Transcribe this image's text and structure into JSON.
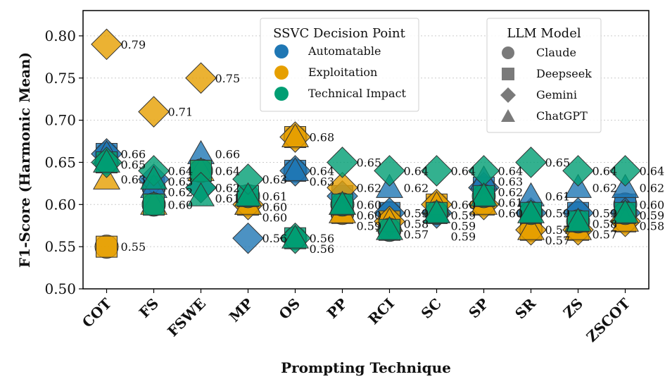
{
  "chart_data": {
    "type": "scatter",
    "title": "",
    "xlabel": "Prompting Technique",
    "ylabel": "F1-Score (Harmonic Mean)",
    "ylim": [
      0.5,
      0.83
    ],
    "yticks": [
      0.5,
      0.55,
      0.6,
      0.65,
      0.7,
      0.75,
      0.8
    ],
    "ytick_labels": [
      "0.50",
      "0.55",
      "0.60",
      "0.65",
      "0.70",
      "0.75",
      "0.80"
    ],
    "grid": "horizontal dotted",
    "categories": [
      "COT",
      "FS",
      "FSWE",
      "MP",
      "OS",
      "PP",
      "RCI",
      "SC",
      "SP",
      "SR",
      "ZS",
      "ZSCOT"
    ],
    "decision_points": [
      {
        "name": "Automatable",
        "color": "#1f77b4"
      },
      {
        "name": "Exploitation",
        "color": "#e69f00"
      },
      {
        "name": "Technical Impact",
        "color": "#009e73"
      }
    ],
    "models": [
      {
        "name": "Claude",
        "marker": "circle"
      },
      {
        "name": "Deepseek",
        "marker": "square"
      },
      {
        "name": "Gemini",
        "marker": "diamond"
      },
      {
        "name": "ChatGPT",
        "marker": "triangle"
      }
    ],
    "legend_color_title": "SSVC Decision Point",
    "legend_marker_title": "LLM Model",
    "series": [
      {
        "decision_point": "Automatable",
        "model": "Claude",
        "values": [
          0.66,
          0.62,
          0.64,
          0.6,
          0.64,
          0.6,
          0.59,
          0.59,
          0.62,
          0.59,
          0.59,
          0.6
        ]
      },
      {
        "decision_point": "Automatable",
        "model": "Deepseek",
        "values": [
          0.66,
          0.62,
          0.64,
          0.6,
          0.64,
          0.61,
          0.59,
          0.59,
          0.62,
          0.59,
          0.59,
          0.6
        ]
      },
      {
        "decision_point": "Automatable",
        "model": "Gemini",
        "values": [
          0.66,
          0.63,
          0.62,
          0.56,
          0.64,
          0.61,
          0.59,
          0.59,
          0.62,
          0.59,
          0.59,
          0.59
        ]
      },
      {
        "decision_point": "Automatable",
        "model": "ChatGPT",
        "values": [
          0.66,
          0.62,
          0.66,
          0.6,
          0.64,
          0.6,
          0.62,
          0.59,
          0.63,
          0.61,
          0.62,
          0.62
        ]
      },
      {
        "decision_point": "Exploitation",
        "model": "Claude",
        "values": [
          0.55,
          0.6,
          0.64,
          0.6,
          0.68,
          0.59,
          0.58,
          0.6,
          0.6,
          0.57,
          0.57,
          0.58
        ]
      },
      {
        "decision_point": "Exploitation",
        "model": "Deepseek",
        "values": [
          0.55,
          0.6,
          0.64,
          0.6,
          0.68,
          0.59,
          0.58,
          0.6,
          0.6,
          0.57,
          0.57,
          0.58
        ]
      },
      {
        "decision_point": "Exploitation",
        "model": "Gemini",
        "values": [
          0.79,
          0.71,
          0.75,
          0.6,
          0.68,
          0.62,
          0.58,
          0.6,
          0.6,
          0.57,
          0.57,
          0.58
        ]
      },
      {
        "decision_point": "Exploitation",
        "model": "ChatGPT",
        "values": [
          0.63,
          0.6,
          0.64,
          0.6,
          0.68,
          0.59,
          0.58,
          0.6,
          0.6,
          0.57,
          0.57,
          0.58
        ]
      },
      {
        "decision_point": "Technical Impact",
        "model": "Claude",
        "values": [
          0.65,
          0.6,
          0.64,
          0.61,
          0.56,
          0.6,
          0.57,
          0.59,
          0.61,
          0.59,
          0.58,
          0.59
        ]
      },
      {
        "decision_point": "Technical Impact",
        "model": "Deepseek",
        "values": [
          0.65,
          0.6,
          0.64,
          0.61,
          0.56,
          0.6,
          0.57,
          0.59,
          0.61,
          0.59,
          0.58,
          0.59
        ]
      },
      {
        "decision_point": "Technical Impact",
        "model": "Gemini",
        "values": [
          0.65,
          0.64,
          0.62,
          0.63,
          0.56,
          0.65,
          0.64,
          0.64,
          0.64,
          0.65,
          0.64,
          0.64
        ]
      },
      {
        "decision_point": "Technical Impact",
        "model": "ChatGPT",
        "values": [
          0.65,
          0.63,
          0.61,
          0.61,
          0.56,
          0.6,
          0.57,
          0.59,
          0.61,
          0.59,
          0.58,
          0.59
        ]
      }
    ],
    "annotations": [
      {
        "x": "COT",
        "y": 0.79,
        "text": "0.79"
      },
      {
        "x": "COT",
        "y": 0.66,
        "text": "0.66"
      },
      {
        "x": "COT",
        "y": 0.65,
        "text": "0.65"
      },
      {
        "x": "COT",
        "y": 0.63,
        "text": "0.63"
      },
      {
        "x": "COT",
        "y": 0.55,
        "text": "0.55"
      },
      {
        "x": "FS",
        "y": 0.71,
        "text": "0.71"
      },
      {
        "x": "FS",
        "y": 0.64,
        "text": "0.64"
      },
      {
        "x": "FS",
        "y": 0.63,
        "text": "0.63"
      },
      {
        "x": "FS",
        "y": 0.62,
        "text": "0.62"
      },
      {
        "x": "FS",
        "y": 0.6,
        "text": "0.60"
      },
      {
        "x": "FSWE",
        "y": 0.75,
        "text": "0.75"
      },
      {
        "x": "FSWE",
        "y": 0.66,
        "text": "0.66"
      },
      {
        "x": "FSWE",
        "y": 0.64,
        "text": "0.64"
      },
      {
        "x": "FSWE",
        "y": 0.62,
        "text": "0.62"
      },
      {
        "x": "FSWE",
        "y": 0.61,
        "text": "0.61"
      },
      {
        "x": "MP",
        "y": 0.63,
        "text": "0.63"
      },
      {
        "x": "MP",
        "y": 0.61,
        "text": "0.61"
      },
      {
        "x": "MP",
        "y": 0.6,
        "text": "0.60"
      },
      {
        "x": "MP",
        "y": 0.6,
        "text": "0.60"
      },
      {
        "x": "MP",
        "y": 0.56,
        "text": "0.56"
      },
      {
        "x": "OS",
        "y": 0.68,
        "text": "0.68"
      },
      {
        "x": "OS",
        "y": 0.64,
        "text": "0.64"
      },
      {
        "x": "OS",
        "y": 0.63,
        "text": "0.63"
      },
      {
        "x": "OS",
        "y": 0.56,
        "text": "0.56"
      },
      {
        "x": "OS",
        "y": 0.56,
        "text": "0.56"
      },
      {
        "x": "PP",
        "y": 0.65,
        "text": "0.65"
      },
      {
        "x": "PP",
        "y": 0.62,
        "text": "0.62"
      },
      {
        "x": "PP",
        "y": 0.6,
        "text": "0.60"
      },
      {
        "x": "PP",
        "y": 0.6,
        "text": "0.60"
      },
      {
        "x": "PP",
        "y": 0.59,
        "text": "0.59"
      },
      {
        "x": "RCI",
        "y": 0.64,
        "text": "0.64"
      },
      {
        "x": "RCI",
        "y": 0.62,
        "text": "0.62"
      },
      {
        "x": "RCI",
        "y": 0.59,
        "text": "0.59"
      },
      {
        "x": "RCI",
        "y": 0.58,
        "text": "0.58"
      },
      {
        "x": "RCI",
        "y": 0.57,
        "text": "0.57"
      },
      {
        "x": "SC",
        "y": 0.64,
        "text": "0.64"
      },
      {
        "x": "SC",
        "y": 0.6,
        "text": "0.60"
      },
      {
        "x": "SC",
        "y": 0.59,
        "text": "0.59"
      },
      {
        "x": "SC",
        "y": 0.59,
        "text": "0.59"
      },
      {
        "x": "SC",
        "y": 0.59,
        "text": "0.59"
      },
      {
        "x": "SP",
        "y": 0.64,
        "text": "0.64"
      },
      {
        "x": "SP",
        "y": 0.63,
        "text": "0.63"
      },
      {
        "x": "SP",
        "y": 0.62,
        "text": "0.62"
      },
      {
        "x": "SP",
        "y": 0.61,
        "text": "0.61"
      },
      {
        "x": "SP",
        "y": 0.6,
        "text": "0.60"
      },
      {
        "x": "SR",
        "y": 0.65,
        "text": "0.65"
      },
      {
        "x": "SR",
        "y": 0.61,
        "text": "0.61"
      },
      {
        "x": "SR",
        "y": 0.59,
        "text": "0.59"
      },
      {
        "x": "SR",
        "y": 0.57,
        "text": "0.57"
      },
      {
        "x": "SR",
        "y": 0.57,
        "text": "0.57"
      },
      {
        "x": "ZS",
        "y": 0.64,
        "text": "0.64"
      },
      {
        "x": "ZS",
        "y": 0.62,
        "text": "0.62"
      },
      {
        "x": "ZS",
        "y": 0.59,
        "text": "0.59"
      },
      {
        "x": "ZS",
        "y": 0.58,
        "text": "0.58"
      },
      {
        "x": "ZS",
        "y": 0.57,
        "text": "0.57"
      },
      {
        "x": "ZSCOT",
        "y": 0.64,
        "text": "0.64"
      },
      {
        "x": "ZSCOT",
        "y": 0.62,
        "text": "0.62"
      },
      {
        "x": "ZSCOT",
        "y": 0.6,
        "text": "0.60"
      },
      {
        "x": "ZSCOT",
        "y": 0.59,
        "text": "0.59"
      },
      {
        "x": "ZSCOT",
        "y": 0.58,
        "text": "0.58"
      }
    ]
  }
}
